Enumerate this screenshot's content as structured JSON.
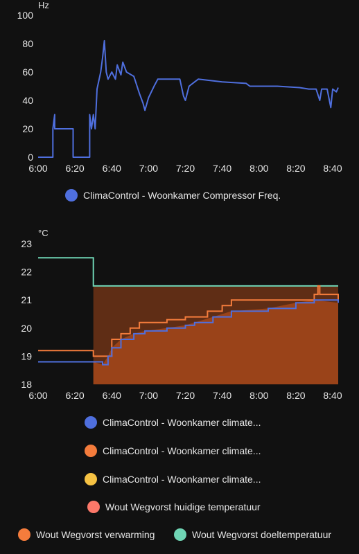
{
  "chart_data": [
    {
      "type": "line",
      "unit": "Hz",
      "ylim": [
        0,
        100
      ],
      "yticks": [
        "0",
        "20",
        "40",
        "60",
        "80",
        "100"
      ],
      "xticks": [
        "6:00",
        "6:20",
        "6:40",
        "7:00",
        "7:20",
        "7:40",
        "8:00",
        "8:20",
        "8:40"
      ],
      "grid": false,
      "legend_position": "bottom",
      "series": [
        {
          "name": "ClimaControl - Woonkamer Compressor Freq.",
          "color": "#4f6fde",
          "points": [
            [
              "6:00",
              0
            ],
            [
              "6:08",
              0
            ],
            [
              "6:08",
              20
            ],
            [
              "6:09",
              30
            ],
            [
              "6:09",
              20
            ],
            [
              "6:19",
              20
            ],
            [
              "6:19",
              0
            ],
            [
              "6:28",
              0
            ],
            [
              "6:28",
              30
            ],
            [
              "6:29",
              20
            ],
            [
              "6:30",
              30
            ],
            [
              "6:31",
              20
            ],
            [
              "6:32",
              48
            ],
            [
              "6:34",
              60
            ],
            [
              "6:35",
              70
            ],
            [
              "6:36",
              82
            ],
            [
              "6:37",
              60
            ],
            [
              "6:38",
              55
            ],
            [
              "6:40",
              60
            ],
            [
              "6:42",
              55
            ],
            [
              "6:43",
              65
            ],
            [
              "6:45",
              58
            ],
            [
              "6:46",
              67
            ],
            [
              "6:48",
              60
            ],
            [
              "6:52",
              57
            ],
            [
              "6:55",
              45
            ],
            [
              "6:57",
              38
            ],
            [
              "6:58",
              33
            ],
            [
              "7:00",
              42
            ],
            [
              "7:03",
              50
            ],
            [
              "7:05",
              55
            ],
            [
              "7:17",
              55
            ],
            [
              "7:19",
              43
            ],
            [
              "7:20",
              40
            ],
            [
              "7:22",
              50
            ],
            [
              "7:25",
              53
            ],
            [
              "7:27",
              55
            ],
            [
              "7:40",
              53
            ],
            [
              "7:53",
              52
            ],
            [
              "7:55",
              50
            ],
            [
              "8:10",
              50
            ],
            [
              "8:22",
              49
            ],
            [
              "8:27",
              48
            ],
            [
              "8:31",
              48
            ],
            [
              "8:33",
              40
            ],
            [
              "8:34",
              48
            ],
            [
              "8:37",
              48
            ],
            [
              "8:39",
              35
            ],
            [
              "8:40",
              48
            ],
            [
              "8:42",
              46
            ],
            [
              "8:43",
              49
            ]
          ]
        }
      ]
    },
    {
      "type": "area",
      "unit": "°C",
      "ylim": [
        18,
        23
      ],
      "yticks": [
        "18",
        "19",
        "20",
        "21",
        "22",
        "23"
      ],
      "xticks": [
        "6:00",
        "6:20",
        "6:40",
        "7:00",
        "7:20",
        "7:40",
        "8:00",
        "8:20",
        "8:40"
      ],
      "grid": false,
      "legend_position": "bottom",
      "heating_band": {
        "start": "6:30",
        "end": "8:43",
        "color": "#a1461a"
      },
      "series": [
        {
          "name": "ClimaControl - Woonkamer climate...",
          "color": "#4f6fde",
          "points": [
            [
              "6:00",
              18.8
            ],
            [
              "6:30",
              18.8
            ],
            [
              "6:35",
              18.7
            ],
            [
              "6:38",
              19.0
            ],
            [
              "6:40",
              19.3
            ],
            [
              "6:45",
              19.6
            ],
            [
              "6:52",
              19.8
            ],
            [
              "6:58",
              19.9
            ],
            [
              "7:10",
              20.0
            ],
            [
              "7:20",
              20.1
            ],
            [
              "7:25",
              20.2
            ],
            [
              "7:35",
              20.4
            ],
            [
              "7:45",
              20.6
            ],
            [
              "8:05",
              20.7
            ],
            [
              "8:20",
              20.9
            ],
            [
              "8:30",
              21.0
            ],
            [
              "8:43",
              20.9
            ]
          ]
        },
        {
          "name": "ClimaControl - Woonkamer climate...",
          "color": "#f47c3c",
          "points": [
            [
              "6:00",
              19.2
            ],
            [
              "6:28",
              19.2
            ],
            [
              "6:30",
              19.0
            ],
            [
              "6:38",
              19.0
            ],
            [
              "6:40",
              19.6
            ],
            [
              "6:45",
              19.8
            ],
            [
              "6:50",
              20.0
            ],
            [
              "6:55",
              20.2
            ],
            [
              "7:10",
              20.3
            ],
            [
              "7:20",
              20.4
            ],
            [
              "7:32",
              20.6
            ],
            [
              "7:40",
              20.8
            ],
            [
              "7:45",
              21.0
            ],
            [
              "8:20",
              21.0
            ],
            [
              "8:30",
              21.2
            ],
            [
              "8:32",
              21.5
            ],
            [
              "8:33",
              21.2
            ],
            [
              "8:43",
              21.0
            ]
          ]
        },
        {
          "name": "ClimaControl - Woonkamer climate...",
          "color": "#f6c243",
          "points": []
        },
        {
          "name": "Wout Wegvorst huidige temperatuur",
          "color": "#fc7869",
          "points": []
        },
        {
          "name": "Wout Wegvorst verwarming",
          "color": "#f47c3c",
          "points": []
        },
        {
          "name": "Wout Wegvorst doeltemperatuur",
          "color": "#6fd4b4",
          "points": [
            [
              "6:00",
              22.5
            ],
            [
              "6:30",
              22.5
            ],
            [
              "6:30",
              21.5
            ],
            [
              "8:43",
              21.5
            ]
          ]
        }
      ]
    }
  ]
}
